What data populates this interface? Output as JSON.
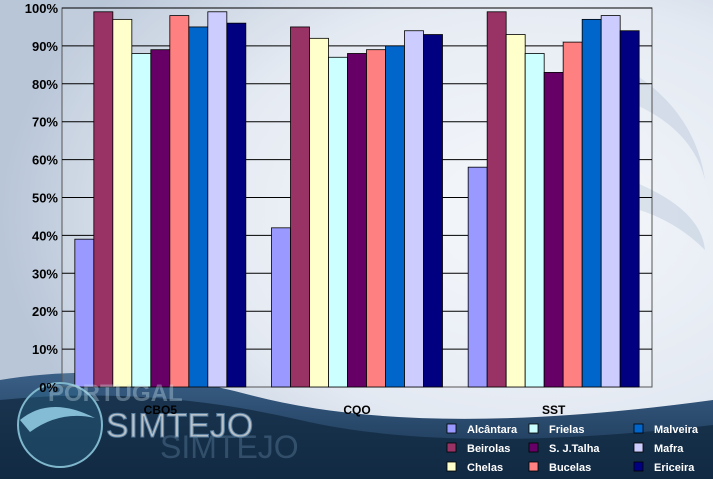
{
  "logo": {
    "text_main": "SIMTEJO",
    "text_ghost": "SIMTEJO",
    "text_brand": "PORTUGAL"
  },
  "chart_data": {
    "type": "bar",
    "categories": [
      "CBO5",
      "CQO",
      "SST"
    ],
    "ylim": [
      0,
      100
    ],
    "ytick_labels": [
      "0%",
      "10%",
      "20%",
      "30%",
      "40%",
      "50%",
      "60%",
      "70%",
      "80%",
      "90%",
      "100%"
    ],
    "grid": true,
    "legend_position": "bottom-right",
    "series": [
      {
        "name": "Alcântara",
        "color": "#9999FF",
        "values": [
          39,
          42,
          58
        ]
      },
      {
        "name": "Beirolas",
        "color": "#993366",
        "values": [
          99,
          95,
          99
        ]
      },
      {
        "name": "Chelas",
        "color": "#FFFFCC",
        "values": [
          97,
          92,
          93
        ]
      },
      {
        "name": "Frielas",
        "color": "#CCFFFF",
        "values": [
          88,
          87,
          88
        ]
      },
      {
        "name": "S. J.Talha",
        "color": "#660066",
        "values": [
          89,
          88,
          83
        ]
      },
      {
        "name": "Bucelas",
        "color": "#FF8080",
        "values": [
          98,
          89,
          91
        ]
      },
      {
        "name": "Malveira",
        "color": "#0066CC",
        "values": [
          95,
          90,
          97
        ]
      },
      {
        "name": "Mafra",
        "color": "#CCCCFF",
        "values": [
          99,
          94,
          98
        ]
      },
      {
        "name": "Ericeira",
        "color": "#000080",
        "values": [
          96,
          93,
          94
        ]
      }
    ]
  }
}
